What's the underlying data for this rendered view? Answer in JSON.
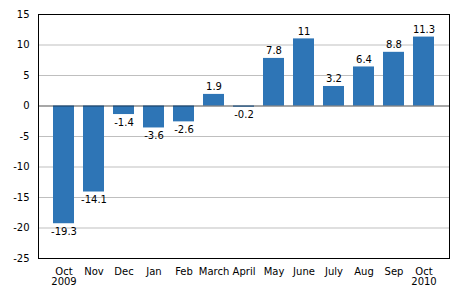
{
  "chart_data": {
    "type": "bar",
    "categories": [
      "Oct\n2009",
      "Nov",
      "Dec",
      "Jan",
      "Feb",
      "March",
      "April",
      "May",
      "June",
      "July",
      "Aug",
      "Sep",
      "Oct\n2010"
    ],
    "values": [
      -19.3,
      -14.1,
      -1.4,
      -3.6,
      -2.6,
      1.9,
      -0.2,
      7.8,
      11,
      3.2,
      6.4,
      8.8,
      11.3
    ],
    "color": "#2E75B6",
    "ylim": [
      -25,
      15
    ],
    "yticks": [
      -25,
      -20,
      -15,
      -10,
      -5,
      0,
      5,
      10,
      15
    ],
    "grid": true,
    "data_labels": true
  }
}
